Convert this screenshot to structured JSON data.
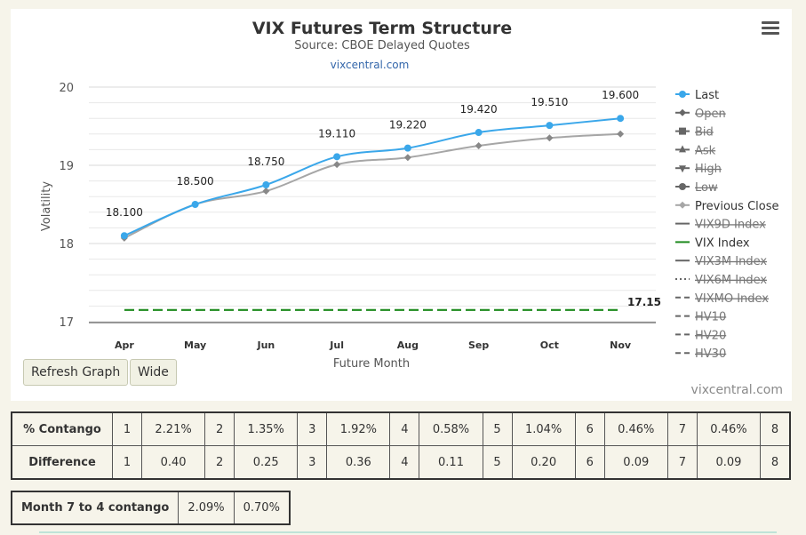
{
  "chart_data": {
    "type": "line",
    "title": "VIX Futures Term Structure",
    "subtitle": "Source: CBOE Delayed Quotes",
    "source_link": "vixcentral.com",
    "xlabel": "Future Month",
    "ylabel": "Volatility",
    "categories": [
      "Apr",
      "May",
      "Jun",
      "Jul",
      "Aug",
      "Sep",
      "Oct",
      "Nov"
    ],
    "ylim": [
      17,
      20
    ],
    "yticks": [
      17,
      18,
      19,
      20
    ],
    "grid": true,
    "legend_position": "right",
    "series": [
      {
        "name": "Last",
        "values": [
          18.1,
          18.5,
          18.75,
          19.11,
          19.22,
          19.42,
          19.51,
          19.6
        ],
        "labels": [
          "18.100",
          "18.500",
          "18.750",
          "19.110",
          "19.220",
          "19.420",
          "19.510",
          "19.600"
        ],
        "color": "#3aa7ea"
      },
      {
        "name": "Previous Close",
        "values": [
          18.07,
          18.5,
          18.67,
          19.01,
          19.1,
          19.25,
          19.35,
          19.4
        ],
        "color": "#a6a6a6"
      },
      {
        "name": "VIX Index",
        "values": [
          17.15,
          17.15,
          17.15,
          17.15,
          17.15,
          17.15,
          17.15,
          17.15
        ],
        "label": "17.15",
        "color": "#1d8a1d"
      }
    ],
    "legend": [
      {
        "name": "Last",
        "symbol": "circle",
        "color": "#3aa7ea",
        "hidden": false
      },
      {
        "name": "Open",
        "symbol": "diamond",
        "color": "#666666",
        "hidden": true
      },
      {
        "name": "Bid",
        "symbol": "square",
        "color": "#666666",
        "hidden": true
      },
      {
        "name": "Ask",
        "symbol": "triangle",
        "color": "#666666",
        "hidden": true
      },
      {
        "name": "High",
        "symbol": "triangle-down",
        "color": "#666666",
        "hidden": true
      },
      {
        "name": "Low",
        "symbol": "circle",
        "color": "#666666",
        "hidden": true
      },
      {
        "name": "Previous Close",
        "symbol": "diamond",
        "color": "#a6a6a6",
        "hidden": false
      },
      {
        "name": "VIX9D Index",
        "symbol": "line",
        "color": "#666666",
        "hidden": true
      },
      {
        "name": "VIX Index",
        "symbol": "line",
        "color": "#1d8a1d",
        "hidden": false
      },
      {
        "name": "VIX3M Index",
        "symbol": "line",
        "color": "#666666",
        "hidden": true
      },
      {
        "name": "VIX6M Index",
        "symbol": "dotted",
        "color": "#666666",
        "hidden": true
      },
      {
        "name": "VIXMO Index",
        "symbol": "dashed",
        "color": "#666666",
        "hidden": true
      },
      {
        "name": "HV10",
        "symbol": "dashed",
        "color": "#666666",
        "hidden": true
      },
      {
        "name": "HV20",
        "symbol": "dashed",
        "color": "#666666",
        "hidden": true
      },
      {
        "name": "HV30",
        "symbol": "dashed",
        "color": "#666666",
        "hidden": true
      }
    ]
  },
  "buttons": {
    "refresh": "Refresh Graph",
    "wide": "Wide"
  },
  "credit": "vixcentral.com",
  "contango_table": {
    "rows": [
      {
        "label": "% Contango",
        "cells": [
          "1",
          "2.21%",
          "2",
          "1.35%",
          "3",
          "1.92%",
          "4",
          "0.58%",
          "5",
          "1.04%",
          "6",
          "0.46%",
          "7",
          "0.46%",
          "8"
        ]
      },
      {
        "label": "Difference",
        "cells": [
          "1",
          "0.40",
          "2",
          "0.25",
          "3",
          "0.36",
          "4",
          "0.11",
          "5",
          "0.20",
          "6",
          "0.09",
          "7",
          "0.09",
          "8"
        ]
      }
    ]
  },
  "summary_table": {
    "label": "Month 7 to 4 contango",
    "values": [
      "2.09%",
      "0.70%"
    ]
  }
}
